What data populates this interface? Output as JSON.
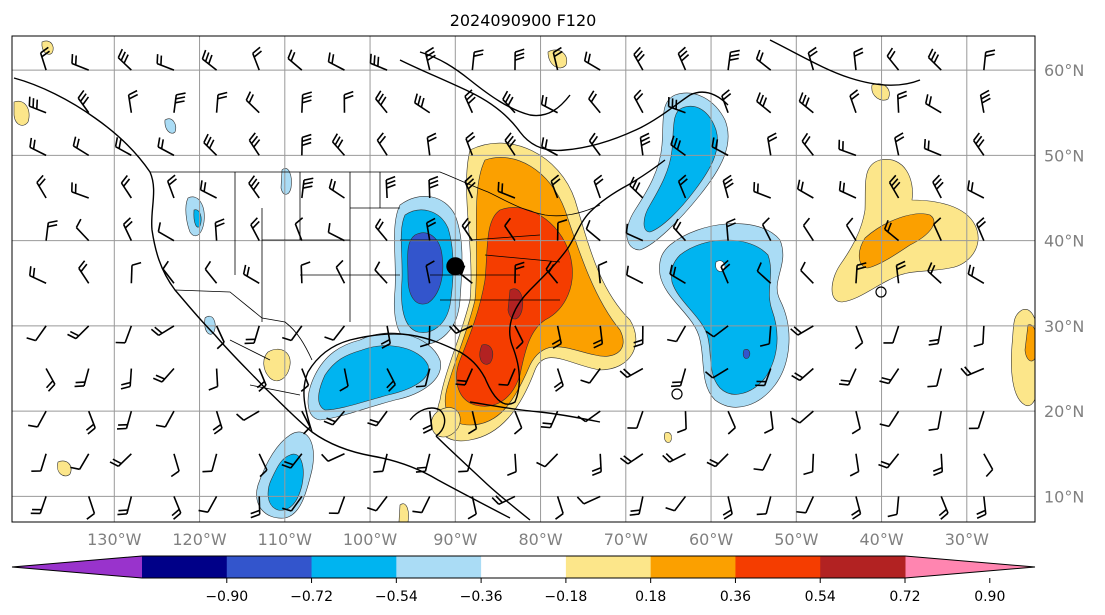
{
  "title": "2024090900 F120",
  "map": {
    "projection": "PlateCarree",
    "lon_range": [
      -142,
      -22
    ],
    "lat_range": [
      7,
      64
    ],
    "lon_labels": [
      "130°W",
      "120°W",
      "110°W",
      "100°W",
      "90°W",
      "80°W",
      "70°W",
      "60°W",
      "50°W",
      "40°W",
      "30°W"
    ],
    "lat_labels": [
      "10°N",
      "20°N",
      "30°N",
      "40°N",
      "50°N",
      "60°N"
    ],
    "gridlines": true,
    "marker": {
      "name": "location-dot",
      "lon": -90,
      "lat": 37
    }
  },
  "colorbar": {
    "ticks": [
      "−0.90",
      "−0.72",
      "−0.54",
      "−0.36",
      "−0.18",
      "0.18",
      "0.36",
      "0.54",
      "0.72",
      "0.90"
    ],
    "colors": [
      "#9933cc",
      "#000088",
      "#3355cc",
      "#00b4f0",
      "#aadcf5",
      "#ffffff",
      "#fce68a",
      "#fba000",
      "#f53d00",
      "#b22222",
      "#ff85b0"
    ],
    "extend": "both"
  },
  "fields": {
    "negative_anomaly_color": "#00b4f0",
    "positive_anomaly_color": "#fba000",
    "coastline_color": "#000000",
    "barb_color": "#000000"
  }
}
